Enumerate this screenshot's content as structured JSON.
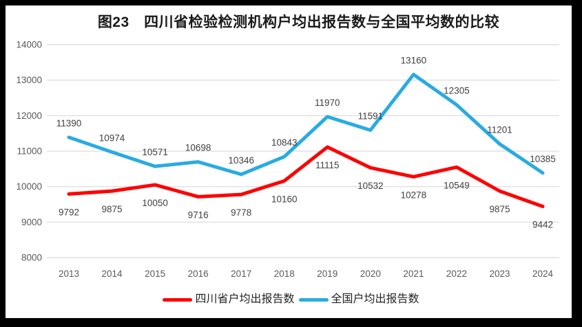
{
  "title": "图23　四川省检验检测机构户均出报告数与全国平均数的比较",
  "chart_data": {
    "type": "line",
    "title": "图23 四川省检验检测机构户均出报告数与全国平均数的比较",
    "categories": [
      "2013",
      "2014",
      "2015",
      "2016",
      "2017",
      "2018",
      "2019",
      "2020",
      "2021",
      "2022",
      "2023",
      "2024"
    ],
    "series": [
      {
        "name": "四川省户均出报告数",
        "color": "#FF0000",
        "label_position": "below",
        "values": [
          9792,
          9875,
          10050,
          9716,
          9778,
          10160,
          11115,
          10532,
          10278,
          10549,
          9875,
          9442
        ]
      },
      {
        "name": "全国户均出报告数",
        "color": "#29ABE2",
        "label_position": "above",
        "values": [
          11390,
          10974,
          10571,
          10698,
          10346,
          10843,
          11970,
          11591,
          13160,
          12305,
          11201,
          10385
        ]
      }
    ],
    "xlabel": "",
    "ylabel": "",
    "ylim": [
      8000,
      14000
    ],
    "yticks": [
      8000,
      9000,
      10000,
      11000,
      12000,
      13000,
      14000
    ],
    "grid": "horizontal",
    "data_labels": true,
    "legend_position": "bottom",
    "colors": {
      "gridline": "#D9D9D9",
      "axis_label": "#595959",
      "data_label": "#404040",
      "background": "#FFFFFF",
      "frame_border": "#000000"
    }
  },
  "legend": {
    "items": [
      {
        "label": "四川省户均出报告数",
        "color": "#FF0000"
      },
      {
        "label": "全国户均出报告数",
        "color": "#29ABE2"
      }
    ]
  }
}
